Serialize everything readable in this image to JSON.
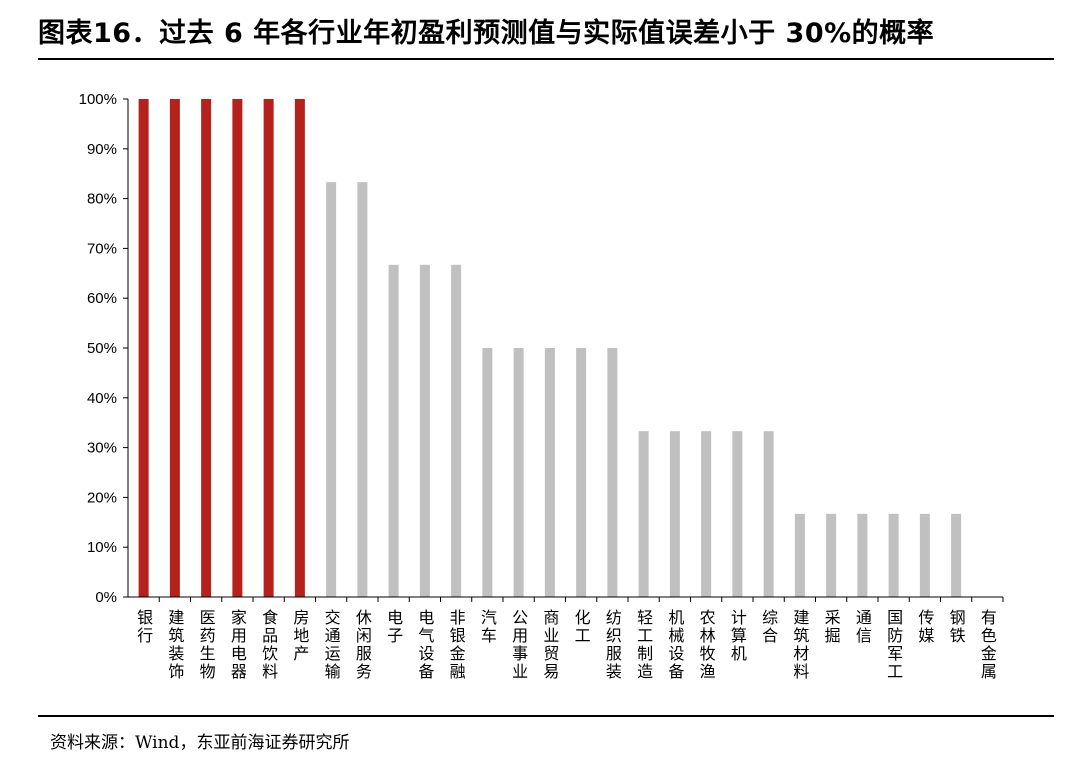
{
  "title": "图表16．过去 6 年各行业年初盈利预测值与实际值误差小于 30%的概率",
  "source": "资料来源：Wind，东亚前海证券研究所",
  "chart_data": {
    "type": "bar",
    "title": "图表16．过去 6 年各行业年初盈利预测值与实际值误差小于 30%的概率",
    "xlabel": "",
    "ylabel": "",
    "ylim": [
      0,
      1
    ],
    "yticks": [
      "0%",
      "10%",
      "20%",
      "30%",
      "40%",
      "50%",
      "60%",
      "70%",
      "80%",
      "90%",
      "100%"
    ],
    "grid": false,
    "legend": "none",
    "categories": [
      "银行",
      "建筑装饰",
      "医药生物",
      "家用电器",
      "食品饮料",
      "房地产",
      "交通运输",
      "休闲服务",
      "电子",
      "电气设备",
      "非银金融",
      "汽车",
      "公用事业",
      "商业贸易",
      "化工",
      "纺织服装",
      "轻工制造",
      "机械设备",
      "农林牧渔",
      "计算机",
      "综合",
      "建筑材料",
      "采掘",
      "通信",
      "国防军工",
      "传媒",
      "钢铁",
      "有色金属"
    ],
    "values": [
      1.0,
      1.0,
      1.0,
      1.0,
      1.0,
      1.0,
      0.833,
      0.833,
      0.667,
      0.667,
      0.667,
      0.5,
      0.5,
      0.5,
      0.5,
      0.5,
      0.333,
      0.333,
      0.333,
      0.333,
      0.333,
      0.167,
      0.167,
      0.167,
      0.167,
      0.167,
      0.167,
      0.0
    ],
    "colors": {
      "highlight": "#b5221c",
      "normal": "#c0c0c0",
      "axis": "#000000"
    },
    "highlight_count": 6
  }
}
